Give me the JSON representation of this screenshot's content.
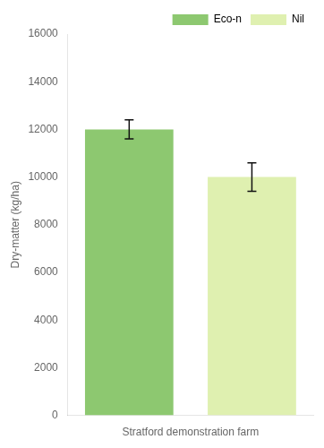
{
  "chart_data": {
    "type": "bar",
    "categories": [
      "Eco-n",
      "Nil"
    ],
    "values": [
      12000,
      10000
    ],
    "errors": [
      400,
      600
    ],
    "colors": [
      "#8DC870",
      "#DFF0B0"
    ],
    "xlabel": "Stratford demonstration farm",
    "ylabel": "Dry-matter (kg/ha)",
    "ylim": [
      0,
      16000
    ],
    "yticks": [
      0,
      2000,
      4000,
      6000,
      8000,
      10000,
      12000,
      14000,
      16000
    ],
    "grid": false,
    "legend": "upper right",
    "tick_labels": "y"
  }
}
